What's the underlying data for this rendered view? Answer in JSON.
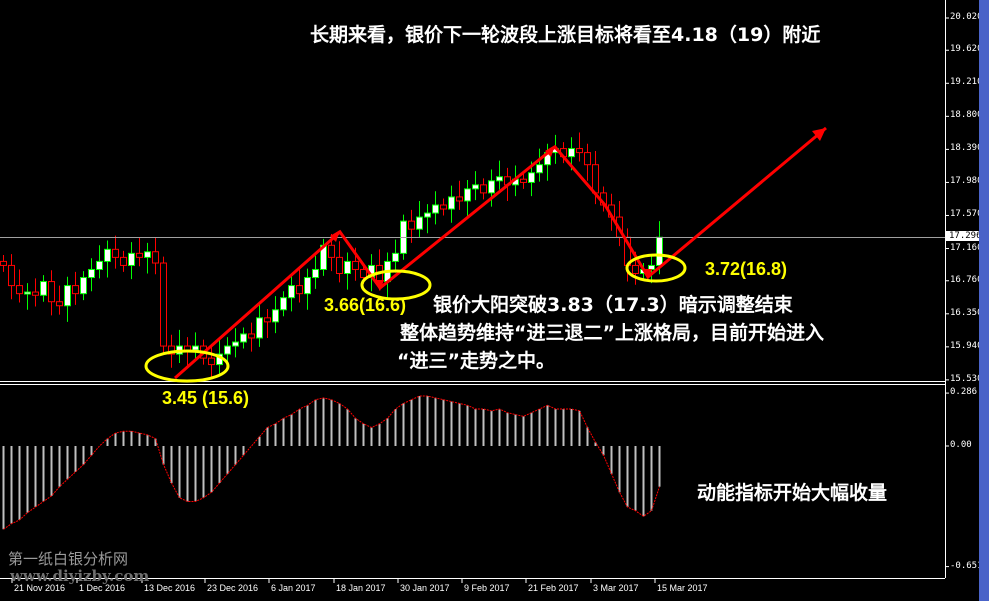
{
  "chart_data": [
    {
      "type": "candlestick",
      "title": "",
      "y_axis": {
        "ticks": [
          "20.020",
          "19.620",
          "19.210",
          "18.800",
          "18.390",
          "17.980",
          "17.570",
          "17.160",
          "16.760",
          "16.350",
          "15.940",
          "15.530"
        ],
        "range": [
          15.53,
          20.02
        ]
      },
      "current_price": "17.296",
      "x_axis": {
        "ticks": [
          "21 Nov 2016",
          "1 Dec 2016",
          "13 Dec 2016",
          "23 Dec 2016",
          "6 Jan 2017",
          "18 Jan 2017",
          "30 Jan 2017",
          "9 Feb 2017",
          "21 Feb 2017",
          "3 Mar 2017",
          "15 Mar 2017"
        ]
      },
      "closes": [
        16.95,
        16.7,
        16.6,
        16.62,
        16.58,
        16.75,
        16.5,
        16.45,
        16.7,
        16.6,
        16.8,
        16.9,
        17.0,
        17.15,
        17.05,
        16.95,
        17.1,
        17.05,
        17.12,
        16.98,
        15.95,
        15.85,
        15.95,
        15.9,
        15.95,
        15.8,
        15.72,
        15.85,
        15.95,
        16.0,
        16.1,
        16.05,
        16.3,
        16.25,
        16.4,
        16.55,
        16.7,
        16.6,
        16.8,
        16.9,
        17.2,
        17.05,
        16.85,
        17.0,
        16.9,
        16.8,
        16.95,
        16.75,
        17.0,
        17.1,
        17.5,
        17.4,
        17.55,
        17.6,
        17.7,
        17.65,
        17.8,
        17.75,
        17.9,
        17.95,
        17.85,
        18.0,
        18.05,
        17.95,
        18.02,
        17.98,
        18.1,
        18.2,
        18.35,
        18.4,
        18.3,
        18.4,
        18.35,
        18.2,
        17.85,
        17.7,
        17.55,
        17.3,
        16.95,
        16.85,
        16.9,
        16.95,
        17.3
      ],
      "colors": {
        "up": "#00ff00",
        "down": "#ff0000",
        "up_body": "#ffffff"
      }
    },
    {
      "type": "bar",
      "title": "",
      "y_axis": {
        "ticks": [
          "0.286",
          "0.00",
          "-0.6519"
        ],
        "range": [
          -0.6519,
          0.286
        ]
      },
      "values": [
        -0.45,
        -0.42,
        -0.4,
        -0.36,
        -0.33,
        -0.3,
        -0.27,
        -0.22,
        -0.18,
        -0.14,
        -0.1,
        -0.05,
        0.0,
        0.04,
        0.07,
        0.08,
        0.08,
        0.07,
        0.06,
        0.04,
        -0.1,
        -0.2,
        -0.28,
        -0.3,
        -0.3,
        -0.28,
        -0.25,
        -0.2,
        -0.15,
        -0.1,
        -0.05,
        0.0,
        0.05,
        0.1,
        0.12,
        0.15,
        0.17,
        0.2,
        0.22,
        0.25,
        0.26,
        0.25,
        0.23,
        0.2,
        0.15,
        0.12,
        0.1,
        0.12,
        0.15,
        0.2,
        0.23,
        0.25,
        0.27,
        0.27,
        0.26,
        0.25,
        0.24,
        0.23,
        0.22,
        0.2,
        0.2,
        0.19,
        0.2,
        0.18,
        0.17,
        0.16,
        0.18,
        0.2,
        0.22,
        0.2,
        0.2,
        0.2,
        0.19,
        0.1,
        0.02,
        -0.05,
        -0.15,
        -0.25,
        -0.33,
        -0.35,
        -0.38,
        -0.35,
        -0.22
      ],
      "colors": {
        "bar": "#c0c0c0",
        "signal": "#ff0000"
      }
    }
  ],
  "annotations": {
    "headline": "长期来看，银价下一轮波段上涨目标将看至4.18（19）附近",
    "low1": "3.45  (15.6)",
    "low2": "3.66(16.6)",
    "low3": "3.72(16.8)",
    "comment1": "银价大阳突破3.83（17.3）暗示调整结束",
    "comment2": "整体趋势维持“进三退二”上涨格局，目前开始进入",
    "comment3": "“进三”走势之中。",
    "momentum": "动能指标开始大幅收量"
  },
  "watermark": {
    "name": "第一纸白银分析网",
    "url": "www.diyizby.com"
  }
}
